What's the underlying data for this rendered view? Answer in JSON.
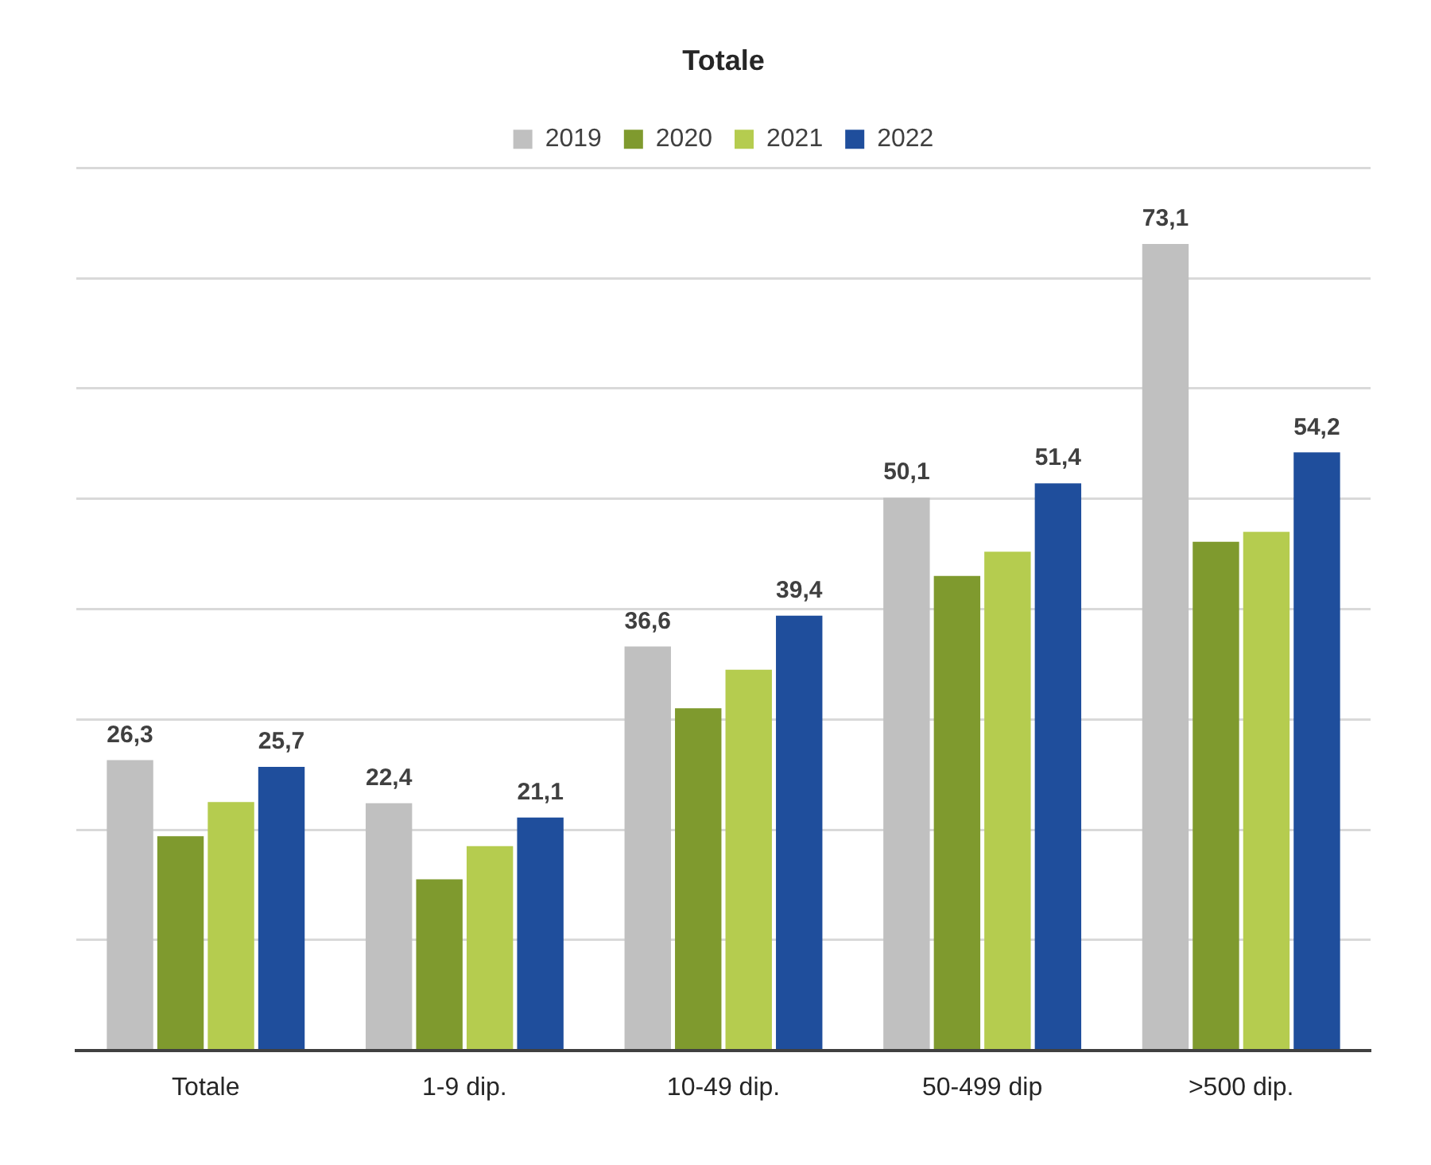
{
  "chart_data": {
    "type": "bar",
    "title": "Totale",
    "categories": [
      "Totale",
      "1-9 dip.",
      "10-49 dip.",
      "50-499 dip",
      ">500 dip."
    ],
    "series": [
      {
        "name": "2019",
        "color": "#c0c0c0",
        "values": [
          26.3,
          22.4,
          36.6,
          50.1,
          73.1
        ],
        "value_labels": [
          "26,3",
          "22,4",
          "36,6",
          "50,1",
          "73,1"
        ]
      },
      {
        "name": "2020",
        "color": "#7f9a2e",
        "values": [
          19.4,
          15.5,
          31.0,
          43.0,
          46.1
        ],
        "value_labels": [
          null,
          null,
          null,
          null,
          null
        ]
      },
      {
        "name": "2021",
        "color": "#b5cc4f",
        "values": [
          22.5,
          18.5,
          34.5,
          45.2,
          47.0
        ],
        "value_labels": [
          null,
          null,
          null,
          null,
          null
        ]
      },
      {
        "name": "2022",
        "color": "#1f4e9c",
        "values": [
          25.7,
          21.1,
          39.4,
          51.4,
          54.2
        ],
        "value_labels": [
          "25,7",
          "21,1",
          "39,4",
          "51,4",
          "54,2"
        ]
      }
    ],
    "ylim": [
      0,
      80
    ],
    "yticks": [
      0,
      {
        "value": 10,
        "label": null
      },
      {
        "value": 20,
        "label": null
      },
      {
        "value": 30,
        "label": null
      },
      {
        "value": 40,
        "label": null
      },
      {
        "value": 50,
        "label": null
      },
      {
        "value": 60,
        "label": null
      },
      {
        "value": 70,
        "label": null
      },
      {
        "value": 80,
        "label": null
      }
    ],
    "tick_labels": "x",
    "grid": "y",
    "legend": "top"
  }
}
